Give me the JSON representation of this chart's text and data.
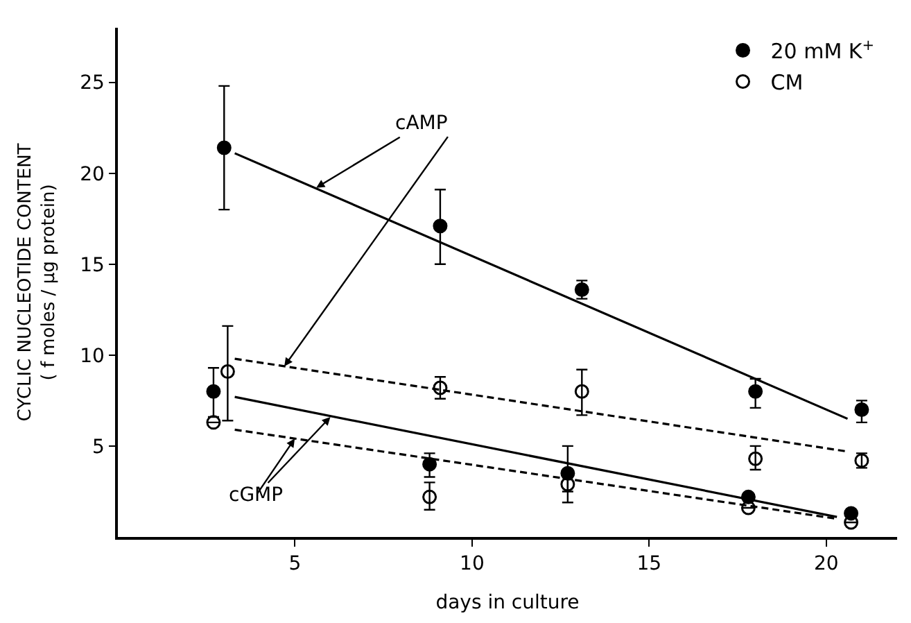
{
  "chart_data": {
    "type": "scatter",
    "xlabel": "days in culture",
    "ylabel": "CYCLIC NUCLEOTIDE CONTENT\n( f moles / μg protein)",
    "xlim": [
      0,
      22
    ],
    "xticks": [
      5,
      10,
      15,
      20
    ],
    "ylim": [
      0,
      28
    ],
    "yticks": [
      5,
      10,
      15,
      20,
      25
    ],
    "legend": "top right",
    "series": [
      {
        "name": "20 mM K$^{+}$",
        "color": "#000000",
        "marker": "circle",
        "x": [
          3.0,
          9.1,
          13.1,
          18.0,
          21.0
        ],
        "values": [
          21.4,
          17.1,
          13.6,
          8.0,
          7.0
        ],
        "errors": [
          [
            18.0,
            24.8
          ],
          [
            15.0,
            19.1
          ],
          [
            13.1,
            14.1
          ],
          [
            7.1,
            8.7
          ],
          [
            6.3,
            7.5
          ]
        ]
      },
      {
        "name": "CM",
        "color": "#000000",
        "marker": "circle-open",
        "x": [
          3.1,
          9.1,
          13.1,
          18.0,
          21.0
        ],
        "values": [
          9.1,
          8.2,
          8.0,
          4.3,
          4.2
        ],
        "errors": [
          [
            6.4,
            11.6
          ],
          [
            7.6,
            8.8
          ],
          [
            6.7,
            9.2
          ],
          [
            3.7,
            5.0
          ],
          [
            3.8,
            4.6
          ]
        ]
      },
      {
        "color": "#000000",
        "marker": "circle",
        "x": [
          2.7,
          8.8,
          12.7,
          17.8,
          20.7
        ],
        "values": [
          8.0,
          4.0,
          3.5,
          2.2,
          1.3
        ],
        "errors": [
          [
            6.6,
            9.3
          ],
          [
            3.3,
            4.6
          ],
          [
            2.5,
            5.0
          ],
          null,
          null
        ]
      },
      {
        "color": "#000000",
        "marker": "circle-open",
        "x": [
          2.7,
          8.8,
          12.7,
          17.8,
          20.7
        ],
        "values": [
          6.3,
          2.2,
          2.9,
          1.6,
          0.8
        ],
        "errors": [
          null,
          [
            1.5,
            3.0
          ],
          [
            1.9,
            3.7
          ],
          null,
          null
        ]
      },
      {
        "type": "line",
        "color": "#000000",
        "line_style": "solid",
        "x": [
          3.3,
          20.6
        ],
        "values": [
          21.1,
          6.5
        ]
      },
      {
        "type": "line",
        "color": "#000000",
        "line_style": "dashed",
        "x": [
          3.3,
          20.6
        ],
        "values": [
          9.8,
          4.7
        ]
      },
      {
        "type": "line",
        "color": "#000000",
        "line_style": "solid",
        "x": [
          3.3,
          20.3
        ],
        "values": [
          7.7,
          1.1
        ]
      },
      {
        "type": "line",
        "color": "#000000",
        "line_style": "dashed",
        "x": [
          3.3,
          20.3
        ],
        "values": [
          5.9,
          1.0
        ]
      }
    ],
    "annotations": [
      {
        "text": "cAMP",
        "x": 5.6,
        "y": 19.2
      },
      {
        "text": "cGMP",
        "x": 6.0,
        "y": 6.6
      }
    ]
  }
}
